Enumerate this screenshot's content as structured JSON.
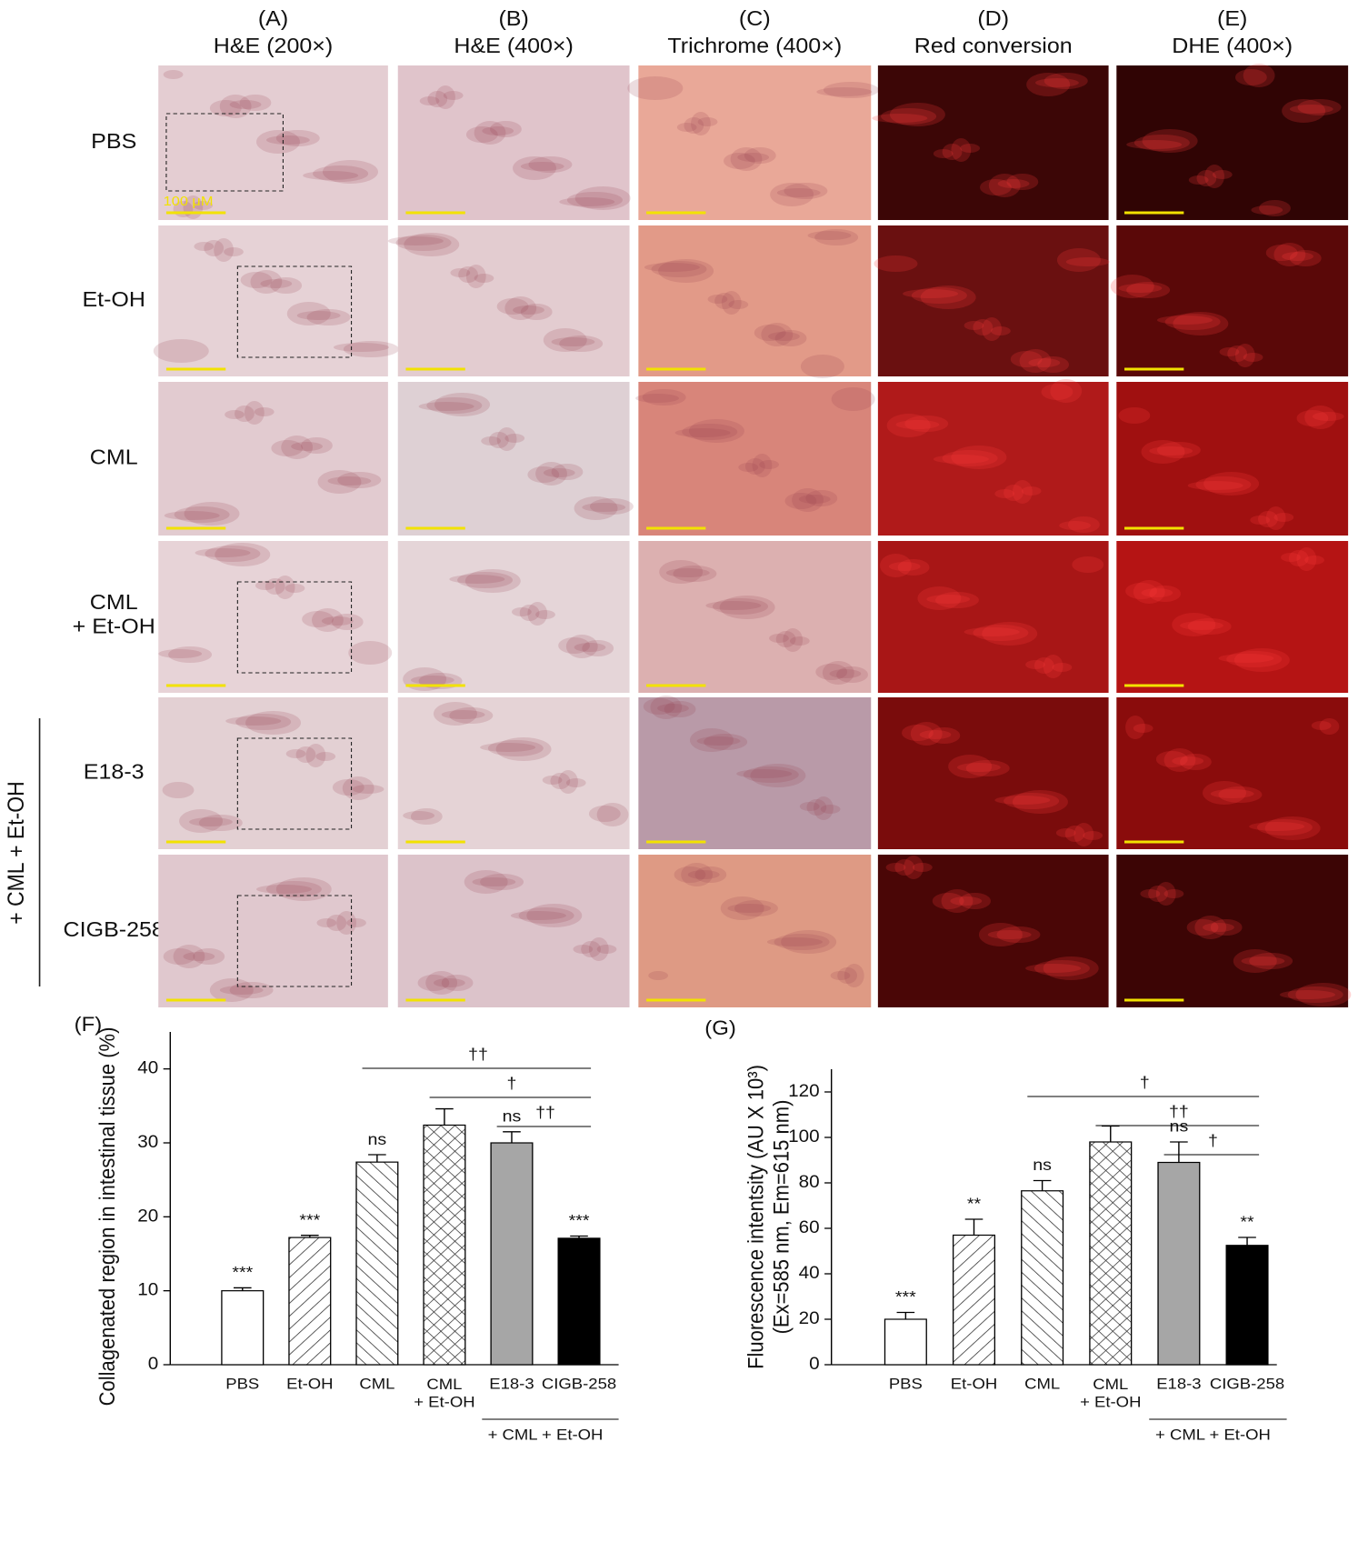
{
  "panels": {
    "columns": [
      {
        "letter": "(A)",
        "title": "H&E (200×)"
      },
      {
        "letter": "(B)",
        "title": "H&E (400×)"
      },
      {
        "letter": "(C)",
        "title": "Trichrome (400×)"
      },
      {
        "letter": "(D)",
        "title": "Red conversion"
      },
      {
        "letter": "(E)",
        "title": "DHE (400×)"
      }
    ],
    "rows": [
      "PBS",
      "Et-OH",
      "CML",
      "CML\n+ Et-OH",
      "E18-3",
      "CIGB-258"
    ],
    "group_label": "+ CML + Et-OH",
    "scale_label": "100 μM"
  },
  "chart_data": [
    {
      "type": "bar",
      "panel_label": "(F)",
      "y_label": "Collagenated region in intestinal tissue (%)",
      "categories": [
        "PBS",
        "Et-OH",
        "CML",
        "CML\n+ Et-OH",
        "E18-3",
        "CIGB-258"
      ],
      "values": [
        10,
        17.2,
        27.4,
        32.4,
        30,
        17.1
      ],
      "errors": [
        0.4,
        0.3,
        1.0,
        2.2,
        1.5,
        0.3
      ],
      "colors": [
        "#ffffff",
        "#ffffff",
        "#ffffff",
        "#ffffff",
        "#a6a6a6",
        "#000000"
      ],
      "patterns": [
        "none",
        "diagonal-right",
        "diagonal-left",
        "crosshatch",
        "none",
        "none"
      ],
      "value_labels": [
        "***",
        "***",
        "ns",
        null,
        "ns",
        "***"
      ],
      "ylim": [
        0,
        45
      ],
      "yticks": [
        0,
        10,
        20,
        30,
        40
      ],
      "brackets": [
        {
          "from": 2,
          "to": 5,
          "label": "††"
        },
        {
          "from": 3,
          "to": 5,
          "label": "†"
        },
        {
          "from": 4,
          "to": 5,
          "label": "††"
        }
      ],
      "group_label": {
        "text": "+ CML + Et-OH",
        "from": 4,
        "to": 5
      }
    },
    {
      "type": "bar",
      "panel_label": "(G)",
      "y_label": [
        "Fluorescence intentsity (AU X 10³)",
        "(Ex=585 nm, Em=615 nm)"
      ],
      "categories": [
        "PBS",
        "Et-OH",
        "CML",
        "CML\n+ Et-OH",
        "E18-3",
        "CIGB-258"
      ],
      "values": [
        20,
        57,
        76.5,
        98,
        89,
        52.5
      ],
      "errors": [
        3,
        7,
        4.5,
        7,
        9,
        3.5
      ],
      "colors": [
        "#ffffff",
        "#ffffff",
        "#ffffff",
        "#ffffff",
        "#a6a6a6",
        "#000000"
      ],
      "patterns": [
        "none",
        "diagonal-right",
        "diagonal-left",
        "crosshatch",
        "none",
        "none"
      ],
      "value_labels": [
        "***",
        "**",
        "ns",
        null,
        "ns",
        "**"
      ],
      "ylim": [
        0,
        130
      ],
      "yticks": [
        0,
        20,
        40,
        60,
        80,
        100,
        120
      ],
      "brackets": [
        {
          "from": 2,
          "to": 5,
          "label": "†"
        },
        {
          "from": 3,
          "to": 5,
          "label": "††"
        },
        {
          "from": 4,
          "to": 5,
          "label": "†"
        }
      ],
      "group_label": {
        "text": "+ CML + Et-OH",
        "from": 4,
        "to": 5
      }
    }
  ]
}
